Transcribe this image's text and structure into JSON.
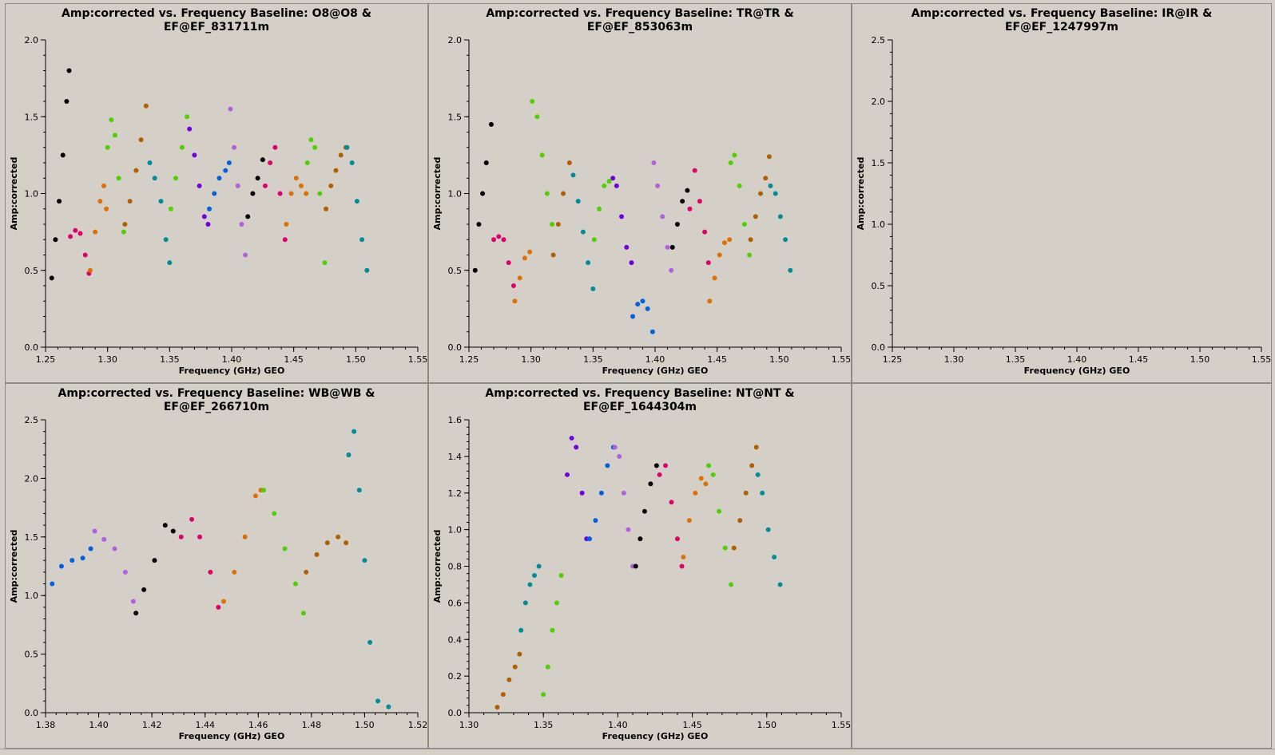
{
  "colors": {
    "background": "#d4d0c8",
    "palette": [
      "#000000",
      "#e0006a",
      "#e07000",
      "#50d000",
      "#b06000",
      "#008c98",
      "#7000e0",
      "#0060e0",
      "#b060e0"
    ]
  },
  "chart_data": [
    {
      "type": "scatter",
      "title_line1": "Amp:corrected vs. Frequency Baseline: O8@O8 &",
      "title_line2": "EF@EF_831711m",
      "xlabel": "Frequency (GHz) GEO",
      "ylabel": "Amp:corrected",
      "xlim": [
        1.25,
        1.55
      ],
      "ylim": [
        0.0,
        2.0
      ],
      "xticks": [
        "1.25",
        "1.30",
        "1.35",
        "1.40",
        "1.45",
        "1.50",
        "1.55"
      ],
      "yticks": [
        "0.0",
        "0.5",
        "1.0",
        "1.5",
        "2.0"
      ],
      "series": [
        {
          "color": "#000000",
          "x": [
            1.255,
            1.258,
            1.261,
            1.264,
            1.267,
            1.269
          ],
          "y": [
            0.45,
            0.7,
            0.95,
            1.25,
            1.6,
            1.8
          ]
        },
        {
          "color": "#e0006a",
          "x": [
            1.27,
            1.274,
            1.278,
            1.282,
            1.285
          ],
          "y": [
            0.72,
            0.76,
            0.74,
            0.6,
            0.48
          ]
        },
        {
          "color": "#e07000",
          "x": [
            1.286,
            1.29,
            1.294,
            1.297,
            1.299
          ],
          "y": [
            0.5,
            0.75,
            0.95,
            1.05,
            0.9
          ]
        },
        {
          "color": "#50d000",
          "x": [
            1.3,
            1.303,
            1.306,
            1.309,
            1.313
          ],
          "y": [
            1.3,
            1.48,
            1.38,
            1.1,
            0.75
          ]
        },
        {
          "color": "#b06000",
          "x": [
            1.314,
            1.318,
            1.323,
            1.327,
            1.331
          ],
          "y": [
            0.8,
            0.95,
            1.15,
            1.35,
            1.57
          ]
        },
        {
          "color": "#008c98",
          "x": [
            1.334,
            1.338,
            1.343,
            1.347,
            1.35
          ],
          "y": [
            1.2,
            1.1,
            0.95,
            0.7,
            0.55
          ]
        },
        {
          "color": "#50d000",
          "x": [
            1.351,
            1.355,
            1.36,
            1.364
          ],
          "y": [
            0.9,
            1.1,
            1.3,
            1.5
          ]
        },
        {
          "color": "#7000e0",
          "x": [
            1.366,
            1.37,
            1.374,
            1.378,
            1.381
          ],
          "y": [
            1.42,
            1.25,
            1.05,
            0.85,
            0.8
          ]
        },
        {
          "color": "#0060e0",
          "x": [
            1.382,
            1.386,
            1.39,
            1.395,
            1.398
          ],
          "y": [
            0.9,
            1.0,
            1.1,
            1.15,
            1.2
          ]
        },
        {
          "color": "#b060e0",
          "x": [
            1.399,
            1.402,
            1.405,
            1.408,
            1.411
          ],
          "y": [
            1.55,
            1.3,
            1.05,
            0.8,
            0.6
          ]
        },
        {
          "color": "#000000",
          "x": [
            1.413,
            1.417,
            1.421,
            1.425
          ],
          "y": [
            0.85,
            1.0,
            1.1,
            1.22
          ]
        },
        {
          "color": "#e0006a",
          "x": [
            1.427,
            1.431,
            1.435,
            1.439,
            1.443
          ],
          "y": [
            1.05,
            1.2,
            1.3,
            1.0,
            0.7
          ]
        },
        {
          "color": "#e07000",
          "x": [
            1.444,
            1.448,
            1.452,
            1.456,
            1.46
          ],
          "y": [
            0.8,
            1.0,
            1.1,
            1.05,
            1.0
          ]
        },
        {
          "color": "#50d000",
          "x": [
            1.461,
            1.464,
            1.467,
            1.471,
            1.475
          ],
          "y": [
            1.2,
            1.35,
            1.3,
            1.0,
            0.55
          ]
        },
        {
          "color": "#b06000",
          "x": [
            1.476,
            1.48,
            1.484,
            1.488,
            1.492
          ],
          "y": [
            0.9,
            1.05,
            1.15,
            1.25,
            1.3
          ]
        },
        {
          "color": "#008c98",
          "x": [
            1.493,
            1.497,
            1.501,
            1.505,
            1.509
          ],
          "y": [
            1.3,
            1.2,
            0.95,
            0.7,
            0.5
          ]
        }
      ]
    },
    {
      "type": "scatter",
      "title_line1": "Amp:corrected vs. Frequency Baseline: TR@TR &",
      "title_line2": "EF@EF_853063m",
      "xlabel": "Frequency (GHz) GEO",
      "ylabel": "Amp:corrected",
      "xlim": [
        1.25,
        1.55
      ],
      "ylim": [
        0.0,
        2.0
      ],
      "xticks": [
        "1.25",
        "1.30",
        "1.35",
        "1.40",
        "1.45",
        "1.50",
        "1.55"
      ],
      "yticks": [
        "0.0",
        "0.5",
        "1.0",
        "1.5",
        "2.0"
      ],
      "series": [
        {
          "color": "#000000",
          "x": [
            1.255,
            1.258,
            1.261,
            1.264,
            1.268
          ],
          "y": [
            0.5,
            0.8,
            1.0,
            1.2,
            1.45
          ]
        },
        {
          "color": "#e0006a",
          "x": [
            1.27,
            1.274,
            1.278,
            1.282,
            1.286
          ],
          "y": [
            0.7,
            0.72,
            0.7,
            0.55,
            0.4
          ]
        },
        {
          "color": "#e07000",
          "x": [
            1.287,
            1.291,
            1.295,
            1.299
          ],
          "y": [
            0.3,
            0.45,
            0.58,
            0.62
          ]
        },
        {
          "color": "#50d000",
          "x": [
            1.301,
            1.305,
            1.309,
            1.313,
            1.317
          ],
          "y": [
            1.6,
            1.5,
            1.25,
            1.0,
            0.8
          ]
        },
        {
          "color": "#b06000",
          "x": [
            1.318,
            1.322,
            1.326,
            1.331
          ],
          "y": [
            0.6,
            0.8,
            1.0,
            1.2
          ]
        },
        {
          "color": "#008c98",
          "x": [
            1.334,
            1.338,
            1.342,
            1.346,
            1.35
          ],
          "y": [
            1.12,
            0.95,
            0.75,
            0.55,
            0.38
          ]
        },
        {
          "color": "#50d000",
          "x": [
            1.351,
            1.355,
            1.359,
            1.363
          ],
          "y": [
            0.7,
            0.9,
            1.05,
            1.08
          ]
        },
        {
          "color": "#7000e0",
          "x": [
            1.366,
            1.369,
            1.373,
            1.377,
            1.381
          ],
          "y": [
            1.1,
            1.05,
            0.85,
            0.65,
            0.55
          ]
        },
        {
          "color": "#0060e0",
          "x": [
            1.382,
            1.386,
            1.39,
            1.394,
            1.398
          ],
          "y": [
            0.2,
            0.28,
            0.3,
            0.25,
            0.1
          ]
        },
        {
          "color": "#b060e0",
          "x": [
            1.399,
            1.402,
            1.406,
            1.41,
            1.413
          ],
          "y": [
            1.2,
            1.05,
            0.85,
            0.65,
            0.5
          ]
        },
        {
          "color": "#000000",
          "x": [
            1.414,
            1.418,
            1.422,
            1.426
          ],
          "y": [
            0.65,
            0.8,
            0.95,
            1.02
          ]
        },
        {
          "color": "#e0006a",
          "x": [
            1.428,
            1.432,
            1.436,
            1.44,
            1.443
          ],
          "y": [
            0.9,
            1.15,
            0.95,
            0.75,
            0.55
          ]
        },
        {
          "color": "#e07000",
          "x": [
            1.444,
            1.448,
            1.452,
            1.456,
            1.46
          ],
          "y": [
            0.3,
            0.45,
            0.6,
            0.68,
            0.7
          ]
        },
        {
          "color": "#50d000",
          "x": [
            1.461,
            1.464,
            1.468,
            1.472,
            1.476
          ],
          "y": [
            1.2,
            1.25,
            1.05,
            0.8,
            0.6
          ]
        },
        {
          "color": "#b06000",
          "x": [
            1.477,
            1.481,
            1.485,
            1.489,
            1.492
          ],
          "y": [
            0.7,
            0.85,
            1.0,
            1.1,
            1.24
          ]
        },
        {
          "color": "#008c98",
          "x": [
            1.493,
            1.497,
            1.501,
            1.505,
            1.509
          ],
          "y": [
            1.05,
            1.0,
            0.85,
            0.7,
            0.5
          ]
        }
      ]
    },
    {
      "type": "scatter",
      "title_line1": "Amp:corrected vs. Frequency Baseline: IR@IR &",
      "title_line2": "EF@EF_1247997m",
      "xlabel": "Frequency (GHz) GEO",
      "ylabel": "Amp:corrected",
      "xlim": [
        1.25,
        1.55
      ],
      "ylim": [
        0.0,
        2.5
      ],
      "xticks": [
        "1.25",
        "1.30",
        "1.35",
        "1.40",
        "1.45",
        "1.50",
        "1.55"
      ],
      "yticks": [
        "0.0",
        "0.5",
        "1.0",
        "1.5",
        "2.0",
        "2.5"
      ],
      "series": []
    },
    {
      "type": "scatter",
      "title_line1": "Amp:corrected vs. Frequency Baseline: WB@WB &",
      "title_line2": "EF@EF_266710m",
      "xlabel": "Frequency (GHz) GEO",
      "ylabel": "Amp:corrected",
      "xlim": [
        1.38,
        1.52
      ],
      "ylim": [
        0.0,
        2.5
      ],
      "xticks": [
        "1.38",
        "1.40",
        "1.42",
        "1.44",
        "1.46",
        "1.48",
        "1.50",
        "1.52"
      ],
      "yticks": [
        "0.0",
        "0.5",
        "1.0",
        "1.5",
        "2.0",
        "2.5"
      ],
      "series": [
        {
          "color": "#0060e0",
          "x": [
            1.3825,
            1.386,
            1.39,
            1.394,
            1.397
          ],
          "y": [
            1.1,
            1.25,
            1.3,
            1.32,
            1.4
          ]
        },
        {
          "color": "#b060e0",
          "x": [
            1.3985,
            1.402,
            1.406,
            1.41,
            1.413
          ],
          "y": [
            1.55,
            1.48,
            1.4,
            1.2,
            0.95
          ]
        },
        {
          "color": "#000000",
          "x": [
            1.414,
            1.417,
            1.421,
            1.425,
            1.428
          ],
          "y": [
            0.85,
            1.05,
            1.3,
            1.6,
            1.55
          ]
        },
        {
          "color": "#e0006a",
          "x": [
            1.431,
            1.435,
            1.438,
            1.442,
            1.445
          ],
          "y": [
            1.5,
            1.65,
            1.5,
            1.2,
            0.9
          ]
        },
        {
          "color": "#e07000",
          "x": [
            1.447,
            1.451,
            1.455,
            1.459,
            1.461
          ],
          "y": [
            0.95,
            1.2,
            1.5,
            1.85,
            1.9
          ]
        },
        {
          "color": "#50d000",
          "x": [
            1.462,
            1.466,
            1.47,
            1.474,
            1.477
          ],
          "y": [
            1.9,
            1.7,
            1.4,
            1.1,
            0.85
          ]
        },
        {
          "color": "#b06000",
          "x": [
            1.478,
            1.482,
            1.486,
            1.49,
            1.493
          ],
          "y": [
            1.2,
            1.35,
            1.45,
            1.5,
            1.45
          ]
        },
        {
          "color": "#008c98",
          "x": [
            1.494,
            1.496,
            1.498,
            1.5,
            1.502,
            1.505,
            1.509
          ],
          "y": [
            2.2,
            2.4,
            1.9,
            1.3,
            0.6,
            0.1,
            0.05
          ]
        }
      ]
    },
    {
      "type": "scatter",
      "title_line1": "Amp:corrected vs. Frequency Baseline: NT@NT &",
      "title_line2": "EF@EF_1644304m",
      "xlabel": "Frequency (GHz) GEO",
      "ylabel": "Amp:corrected",
      "xlim": [
        1.3,
        1.55
      ],
      "ylim": [
        0.0,
        1.6
      ],
      "xticks": [
        "1.30",
        "1.35",
        "1.40",
        "1.45",
        "1.50",
        "1.55"
      ],
      "yticks": [
        "0.0",
        "0.2",
        "0.4",
        "0.6",
        "0.8",
        "1.0",
        "1.2",
        "1.4",
        "1.6"
      ],
      "series": [
        {
          "color": "#b06000",
          "x": [
            1.319,
            1.323,
            1.327,
            1.331,
            1.334
          ],
          "y": [
            0.03,
            0.1,
            0.18,
            0.25,
            0.32
          ]
        },
        {
          "color": "#008c98",
          "x": [
            1.335,
            1.338,
            1.341,
            1.344,
            1.347
          ],
          "y": [
            0.45,
            0.6,
            0.7,
            0.75,
            0.8
          ]
        },
        {
          "color": "#50d000",
          "x": [
            1.35,
            1.353,
            1.356,
            1.359,
            1.362
          ],
          "y": [
            0.1,
            0.25,
            0.45,
            0.6,
            0.75
          ]
        },
        {
          "color": "#7000e0",
          "x": [
            1.366,
            1.369,
            1.372,
            1.376,
            1.379
          ],
          "y": [
            1.3,
            1.5,
            1.45,
            1.2,
            0.95
          ]
        },
        {
          "color": "#0060e0",
          "x": [
            1.381,
            1.385,
            1.389,
            1.393,
            1.397
          ],
          "y": [
            0.95,
            1.05,
            1.2,
            1.35,
            1.45
          ]
        },
        {
          "color": "#b060e0",
          "x": [
            1.398,
            1.401,
            1.404,
            1.407,
            1.41
          ],
          "y": [
            1.45,
            1.4,
            1.2,
            1.0,
            0.8
          ]
        },
        {
          "color": "#000000",
          "x": [
            1.412,
            1.415,
            1.418,
            1.422,
            1.426
          ],
          "y": [
            0.8,
            0.95,
            1.1,
            1.25,
            1.35
          ]
        },
        {
          "color": "#e0006a",
          "x": [
            1.428,
            1.432,
            1.436,
            1.44,
            1.443
          ],
          "y": [
            1.3,
            1.35,
            1.15,
            0.95,
            0.8
          ]
        },
        {
          "color": "#e07000",
          "x": [
            1.444,
            1.448,
            1.452,
            1.456,
            1.459
          ],
          "y": [
            0.85,
            1.05,
            1.2,
            1.28,
            1.25
          ]
        },
        {
          "color": "#50d000",
          "x": [
            1.461,
            1.464,
            1.468,
            1.472,
            1.476
          ],
          "y": [
            1.35,
            1.3,
            1.1,
            0.9,
            0.7
          ]
        },
        {
          "color": "#b06000",
          "x": [
            1.478,
            1.482,
            1.486,
            1.49,
            1.493
          ],
          "y": [
            0.9,
            1.05,
            1.2,
            1.35,
            1.45
          ]
        },
        {
          "color": "#008c98",
          "x": [
            1.494,
            1.497,
            1.501,
            1.505,
            1.509
          ],
          "y": [
            1.3,
            1.2,
            1.0,
            0.85,
            0.7
          ]
        }
      ]
    }
  ]
}
